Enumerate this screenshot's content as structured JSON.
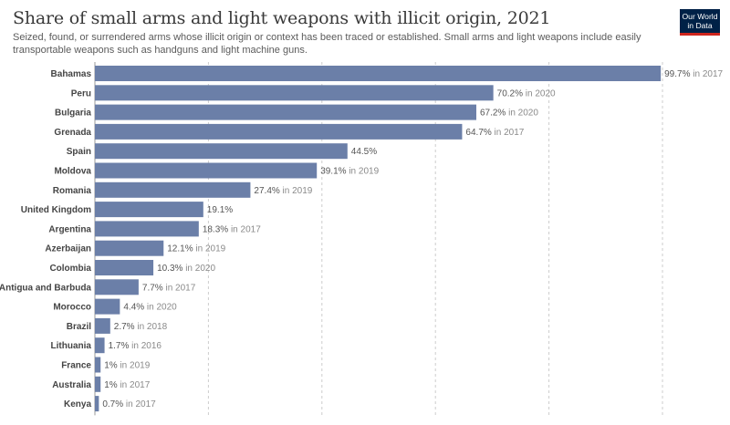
{
  "title": "Share of small arms and light weapons with illicit origin, 2021",
  "subtitle": "Seized, found, or surrendered arms whose illicit origin or context has been traced or established. Small arms and light weapons include easily transportable weapons such as handguns and light machine guns.",
  "logo": {
    "line1": "Our World",
    "line2": "in Data"
  },
  "colors": {
    "bar": "#6b7fa8",
    "grid": "#cccccc",
    "logo_bg": "#002147",
    "logo_accent": "#ce261e"
  },
  "chart_data": {
    "type": "bar",
    "orientation": "horizontal",
    "xlim": [
      0,
      100
    ],
    "grid": "vertical dashed",
    "unit": "%",
    "categories": [
      "Bahamas",
      "Peru",
      "Bulgaria",
      "Grenada",
      "Spain",
      "Moldova",
      "Romania",
      "United Kingdom",
      "Argentina",
      "Azerbaijan",
      "Colombia",
      "Antigua and Barbuda",
      "Morocco",
      "Brazil",
      "Lithuania",
      "France",
      "Australia",
      "Kenya"
    ],
    "values": [
      99.7,
      70.2,
      67.2,
      64.7,
      44.5,
      39.1,
      27.4,
      19.1,
      18.3,
      12.1,
      10.3,
      7.7,
      4.4,
      2.7,
      1.7,
      1,
      1,
      0.7
    ],
    "value_labels": [
      "99.7%",
      "70.2%",
      "67.2%",
      "64.7%",
      "44.5%",
      "39.1%",
      "27.4%",
      "19.1%",
      "18.3%",
      "12.1%",
      "10.3%",
      "7.7%",
      "4.4%",
      "2.7%",
      "1.7%",
      "1%",
      "1%",
      "0.7%"
    ],
    "year_notes": [
      "in 2017",
      "in 2020",
      "in 2020",
      "in 2017",
      "",
      "in 2019",
      "in 2019",
      "",
      "in 2017",
      "in 2019",
      "in 2020",
      "in 2017",
      "in 2020",
      "in 2018",
      "in 2016",
      "in 2019",
      "in 2017",
      "in 2017"
    ]
  }
}
